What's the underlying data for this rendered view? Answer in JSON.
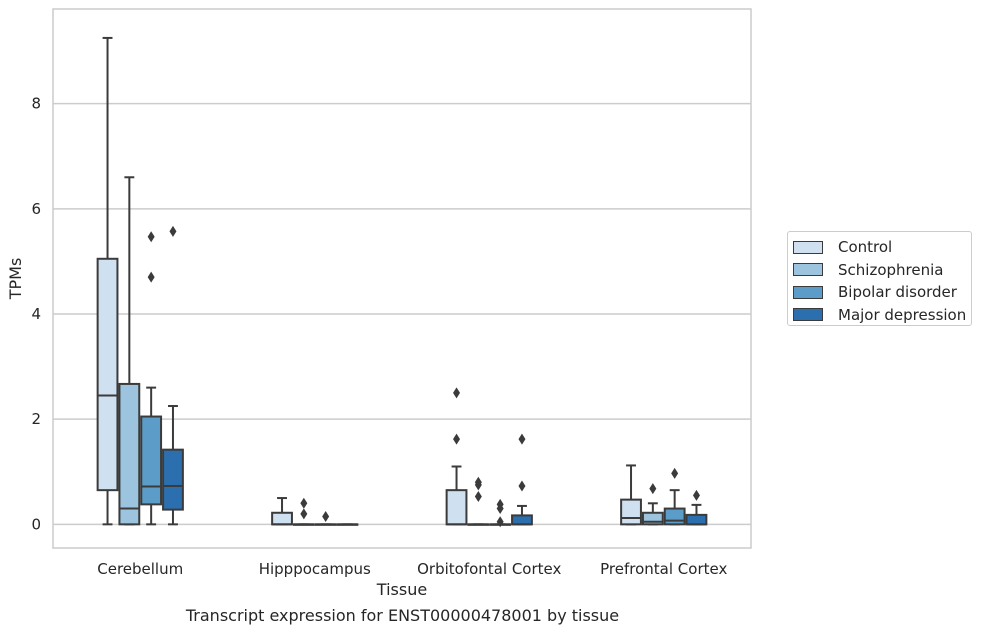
{
  "chart_data": {
    "type": "box",
    "title": "",
    "xlabel": "Tissue",
    "ylabel": "TPMs",
    "caption": "Transcript expression for ENST00000478001 by tissue",
    "categories": [
      "Cerebellum",
      "Hipppocampus",
      "Orbitofontal Cortex",
      "Prefrontal Cortex"
    ],
    "ylim": [
      -0.45,
      9.8
    ],
    "yticks": [
      0,
      2,
      4,
      6,
      8
    ],
    "grid": "horizontal",
    "legend_position": "right",
    "series": [
      {
        "name": "Control",
        "color": "#cfe0f0",
        "boxes": [
          {
            "whislo": 0.0,
            "q1": 0.65,
            "med": 2.45,
            "q3": 5.05,
            "whishi": 9.25,
            "fliers": []
          },
          {
            "whislo": 0.0,
            "q1": 0.0,
            "med": 0.0,
            "q3": 0.22,
            "whishi": 0.5,
            "fliers": []
          },
          {
            "whislo": 0.0,
            "q1": 0.0,
            "med": 0.0,
            "q3": 0.65,
            "whishi": 1.1,
            "fliers": [
              1.62,
              2.5
            ]
          },
          {
            "whislo": 0.0,
            "q1": 0.0,
            "med": 0.12,
            "q3": 0.47,
            "whishi": 1.12,
            "fliers": []
          }
        ]
      },
      {
        "name": "Schizophrenia",
        "color": "#9cc4df",
        "boxes": [
          {
            "whislo": 0.0,
            "q1": 0.0,
            "med": 0.3,
            "q3": 2.67,
            "whishi": 6.6,
            "fliers": []
          },
          {
            "whislo": 0.0,
            "q1": 0.0,
            "med": 0.0,
            "q3": 0.0,
            "whishi": 0.0,
            "fliers": [
              0.2,
              0.4
            ]
          },
          {
            "whislo": 0.0,
            "q1": 0.0,
            "med": 0.0,
            "q3": 0.0,
            "whishi": 0.0,
            "fliers": [
              0.53,
              0.75,
              0.8
            ]
          },
          {
            "whislo": 0.0,
            "q1": 0.0,
            "med": 0.05,
            "q3": 0.22,
            "whishi": 0.4,
            "fliers": [
              0.68
            ]
          }
        ]
      },
      {
        "name": "Bipolar disorder",
        "color": "#5b9cc8",
        "boxes": [
          {
            "whislo": 0.0,
            "q1": 0.38,
            "med": 0.72,
            "q3": 2.05,
            "whishi": 2.6,
            "fliers": [
              4.7,
              5.47
            ]
          },
          {
            "whislo": 0.0,
            "q1": 0.0,
            "med": 0.0,
            "q3": 0.0,
            "whishi": 0.0,
            "fliers": [
              0.15
            ]
          },
          {
            "whislo": 0.0,
            "q1": 0.0,
            "med": 0.0,
            "q3": 0.0,
            "whishi": 0.0,
            "fliers": [
              0.05,
              0.3,
              0.38
            ]
          },
          {
            "whislo": 0.0,
            "q1": 0.0,
            "med": 0.07,
            "q3": 0.3,
            "whishi": 0.65,
            "fliers": [
              0.97
            ]
          }
        ]
      },
      {
        "name": "Major depression",
        "color": "#2c6fae",
        "boxes": [
          {
            "whislo": 0.0,
            "q1": 0.28,
            "med": 0.73,
            "q3": 1.42,
            "whishi": 2.25,
            "fliers": [
              5.57
            ]
          },
          {
            "whislo": 0.0,
            "q1": 0.0,
            "med": 0.0,
            "q3": 0.0,
            "whishi": 0.0,
            "fliers": []
          },
          {
            "whislo": 0.0,
            "q1": 0.0,
            "med": 0.0,
            "q3": 0.17,
            "whishi": 0.35,
            "fliers": [
              0.73,
              1.62
            ]
          },
          {
            "whislo": 0.0,
            "q1": 0.0,
            "med": 0.0,
            "q3": 0.18,
            "whishi": 0.37,
            "fliers": [
              0.55
            ]
          }
        ]
      }
    ]
  }
}
